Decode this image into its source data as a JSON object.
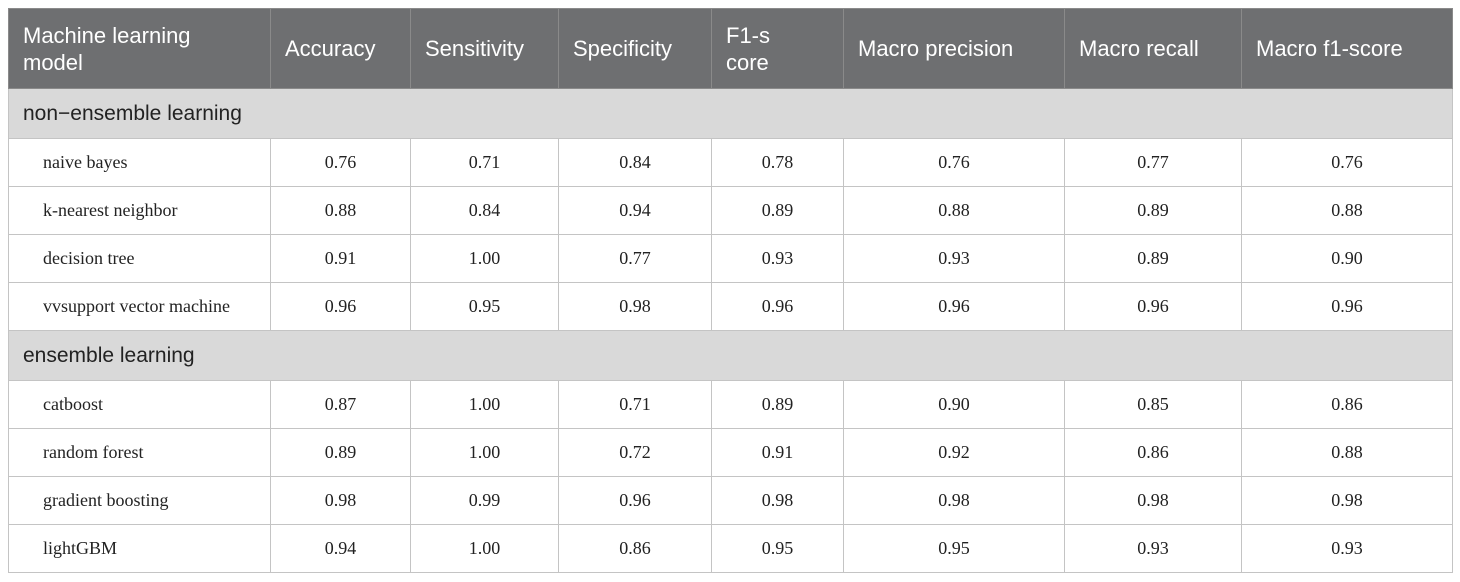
{
  "table": {
    "header": [
      "Machine learning model",
      "Accuracy",
      "Sensitivity",
      "Specificity",
      "F1-score",
      "Macro precision",
      "Macro recall",
      "Macro f1-score"
    ],
    "groups": [
      {
        "label": "non−ensemble learning",
        "rows": [
          [
            "naive bayes",
            "0.76",
            "0.71",
            "0.84",
            "0.78",
            "0.76",
            "0.77",
            "0.76"
          ],
          [
            "k-nearest neighbor",
            "0.88",
            "0.84",
            "0.94",
            "0.89",
            "0.88",
            "0.89",
            "0.88"
          ],
          [
            "decision tree",
            "0.91",
            "1.00",
            "0.77",
            "0.93",
            "0.93",
            "0.89",
            "0.90"
          ],
          [
            "vvsupport vector machine",
            "0.96",
            "0.95",
            "0.98",
            "0.96",
            "0.96",
            "0.96",
            "0.96"
          ]
        ]
      },
      {
        "label": "ensemble learning",
        "rows": [
          [
            "catboost",
            "0.87",
            "1.00",
            "0.71",
            "0.89",
            "0.90",
            "0.85",
            "0.86"
          ],
          [
            "random forest",
            "0.89",
            "1.00",
            "0.72",
            "0.91",
            "0.92",
            "0.86",
            "0.88"
          ],
          [
            "gradient boosting",
            "0.98",
            "0.99",
            "0.96",
            "0.98",
            "0.98",
            "0.98",
            "0.98"
          ],
          [
            "lightGBM",
            "0.94",
            "1.00",
            "0.86",
            "0.95",
            "0.95",
            "0.93",
            "0.93"
          ]
        ]
      }
    ]
  }
}
